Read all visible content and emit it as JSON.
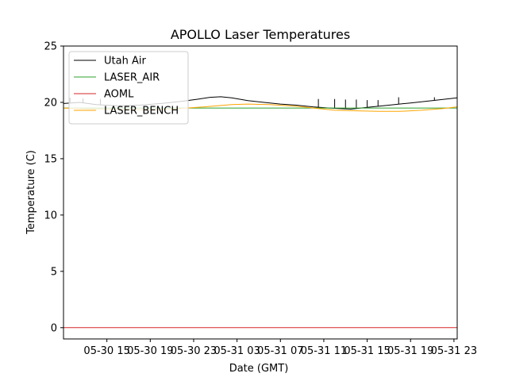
{
  "chart_data": {
    "type": "line",
    "title": "APOLLO Laser Temperatures",
    "xlabel": "Date (GMT)",
    "ylabel": "Temperature (C)",
    "ylim": [
      -1,
      25
    ],
    "xlim_hours": [
      10,
      46.3
    ],
    "grid": false,
    "legend_position": "top-left",
    "y_ticks": [
      0,
      5,
      10,
      15,
      20,
      25
    ],
    "y_tick_labels": [
      "0",
      "5",
      "10",
      "15",
      "20",
      "25"
    ],
    "x_ticks_hours": [
      14,
      18,
      22,
      26,
      30,
      34,
      38,
      42,
      46
    ],
    "x_tick_labels": [
      "05-30 15",
      "05-30 19",
      "05-30 23",
      "05-31 03",
      "05-31 07",
      "05-31 11",
      "05-31 15",
      "05-31 19",
      "05-31 23"
    ],
    "series": [
      {
        "name": "Utah Air",
        "color": "#000000",
        "x_hours": [
          10,
          11.5,
          13,
          15,
          17,
          19,
          21,
          22.5,
          23.5,
          24.5,
          25.5,
          27,
          28.5,
          30,
          31.5,
          33,
          34.5,
          36.5,
          38,
          40,
          42,
          44,
          46.3
        ],
        "values": [
          19.9,
          20.0,
          19.8,
          19.7,
          19.75,
          19.9,
          20.1,
          20.3,
          20.45,
          20.5,
          20.4,
          20.15,
          20.0,
          19.85,
          19.75,
          19.6,
          19.5,
          19.4,
          19.55,
          19.75,
          19.95,
          20.15,
          20.4
        ],
        "spikes": [
          {
            "x": 10.6,
            "to": 20.4
          },
          {
            "x": 11.8,
            "to": 20.35
          },
          {
            "x": 13.4,
            "to": 20.3
          },
          {
            "x": 33.5,
            "to": 20.3
          },
          {
            "x": 35.0,
            "to": 20.3
          },
          {
            "x": 36.0,
            "to": 20.25
          },
          {
            "x": 37.0,
            "to": 20.25
          },
          {
            "x": 38.0,
            "to": 20.2
          },
          {
            "x": 39.0,
            "to": 20.2
          },
          {
            "x": 40.9,
            "to": 20.45
          },
          {
            "x": 44.2,
            "to": 20.45
          }
        ]
      },
      {
        "name": "LASER_AIR",
        "color": "#2ca02c",
        "x_hours": [
          10,
          46.3
        ],
        "values": [
          19.5,
          19.5
        ]
      },
      {
        "name": "AOML",
        "color": "#d62728",
        "x_hours": [
          10,
          46.3
        ],
        "values": [
          0,
          0
        ]
      },
      {
        "name": "LASER_BENCH",
        "color": "#ffa500",
        "x_hours": [
          10,
          11.5,
          14,
          17,
          20,
          23,
          25.5,
          27,
          29,
          31.5,
          33.5,
          35,
          37,
          39,
          41,
          43,
          45,
          46.3
        ],
        "values": [
          19.5,
          19.45,
          19.4,
          19.35,
          19.4,
          19.6,
          19.8,
          19.85,
          19.8,
          19.65,
          19.45,
          19.3,
          19.25,
          19.2,
          19.2,
          19.3,
          19.45,
          19.6
        ]
      }
    ]
  }
}
